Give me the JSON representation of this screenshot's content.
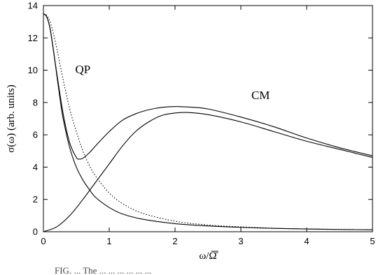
{
  "chart_data": {
    "type": "line",
    "xlabel": "ω/Ω̄",
    "ylabel": "σ(ω) (arb. units)",
    "xlim": [
      0,
      5
    ],
    "ylim": [
      0,
      14
    ],
    "x_ticks": [
      "0",
      "1",
      "2",
      "3",
      "4",
      "5"
    ],
    "y_ticks": [
      "0",
      "2",
      "4",
      "6",
      "8",
      "10",
      "12",
      "14"
    ],
    "grid": false,
    "legend": "none",
    "annotations": [
      {
        "text": "QP",
        "x": 0.6,
        "y": 9.8
      },
      {
        "text": "CM",
        "x": 3.3,
        "y": 8.2
      }
    ],
    "series": [
      {
        "style": "solid",
        "x": [
          0,
          0.05,
          0.1,
          0.15,
          0.2,
          0.25,
          0.3,
          0.4,
          0.5,
          0.6,
          0.7,
          0.8,
          1.0,
          1.2,
          1.5,
          2.0,
          2.5,
          3.0,
          3.5,
          4.0,
          4.5,
          5.0
        ],
        "values": [
          13.5,
          13.3,
          12.6,
          11.3,
          9.8,
          8.3,
          7.0,
          5.2,
          4.0,
          3.2,
          2.6,
          2.1,
          1.5,
          1.1,
          0.78,
          0.5,
          0.36,
          0.27,
          0.21,
          0.17,
          0.14,
          0.12
        ]
      },
      {
        "style": "dotted",
        "x": [
          0,
          0.05,
          0.1,
          0.15,
          0.2,
          0.25,
          0.3,
          0.4,
          0.5,
          0.6,
          0.7,
          0.8,
          1.0,
          1.2,
          1.5,
          2.0,
          2.5,
          3.0,
          3.5,
          4.0,
          4.5,
          5.0
        ],
        "values": [
          13.5,
          13.4,
          13.0,
          12.3,
          11.4,
          10.4,
          9.4,
          7.6,
          6.2,
          5.0,
          4.1,
          3.4,
          2.4,
          1.75,
          1.15,
          0.65,
          0.42,
          0.3,
          0.22,
          0.17,
          0.14,
          0.12
        ]
      },
      {
        "style": "solid",
        "x": [
          0,
          0.2,
          0.4,
          0.6,
          0.8,
          1.0,
          1.2,
          1.4,
          1.6,
          1.8,
          2.0,
          2.2,
          2.5,
          3.0,
          3.5,
          4.0,
          4.5,
          5.0
        ],
        "values": [
          0,
          0.3,
          1.0,
          2.0,
          3.1,
          4.2,
          5.3,
          6.2,
          6.8,
          7.2,
          7.35,
          7.38,
          7.25,
          6.8,
          6.2,
          5.6,
          5.1,
          4.6
        ]
      },
      {
        "style": "solid",
        "x": [
          0,
          0.05,
          0.1,
          0.15,
          0.2,
          0.3,
          0.4,
          0.5,
          0.55,
          0.6,
          0.7,
          0.8,
          1.0,
          1.2,
          1.4,
          1.6,
          1.8,
          2.0,
          2.2,
          2.5,
          3.0,
          3.5,
          4.0,
          4.5,
          5.0
        ],
        "values": [
          13.5,
          13.3,
          12.6,
          11.3,
          9.9,
          7.3,
          5.5,
          4.6,
          4.5,
          4.55,
          4.9,
          5.35,
          6.2,
          6.9,
          7.3,
          7.55,
          7.7,
          7.75,
          7.72,
          7.6,
          7.1,
          6.5,
          5.8,
          5.2,
          4.7
        ]
      }
    ]
  },
  "caption_fragment": "FIG. ... The ... ... ... ... ... ..."
}
